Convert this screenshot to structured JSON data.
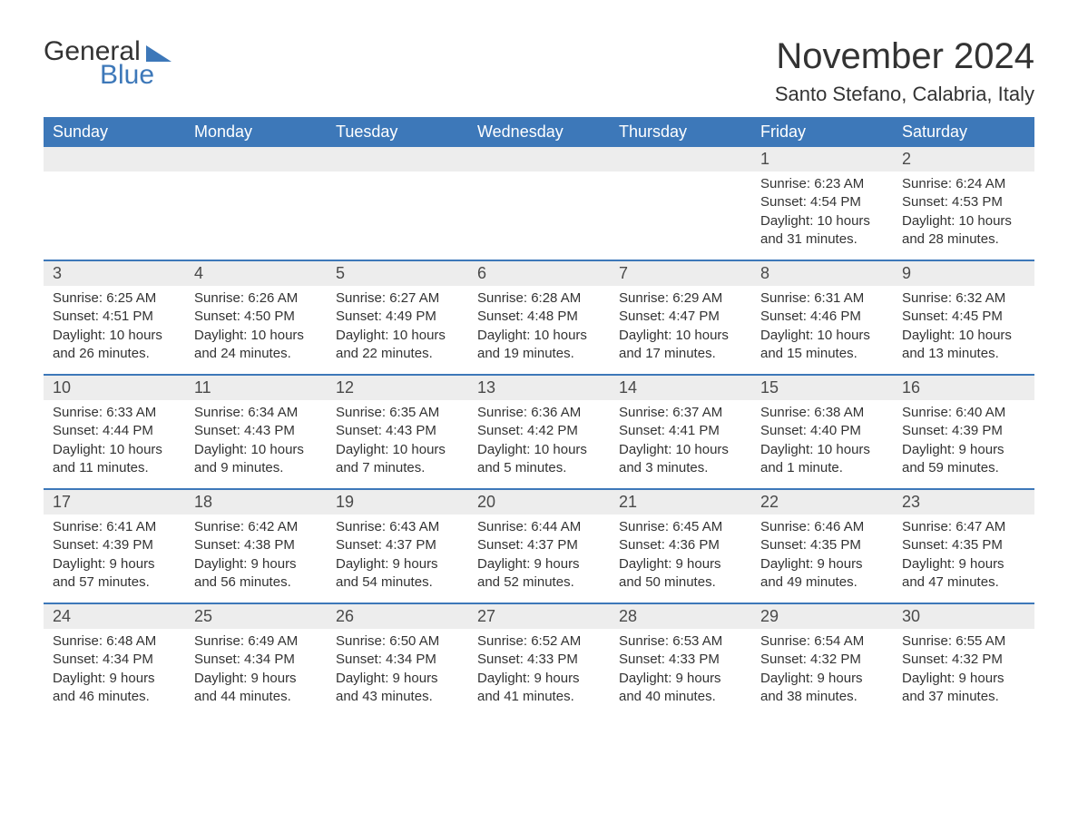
{
  "logo": {
    "word1": "General",
    "word2": "Blue"
  },
  "title": "November 2024",
  "location": "Santo Stefano, Calabria, Italy",
  "colors": {
    "brand": "#3d78b9",
    "header_bg": "#3d78b9",
    "header_text": "#ffffff",
    "daynum_bg": "#ededed",
    "text": "#333333",
    "background": "#ffffff"
  },
  "weekdays": [
    "Sunday",
    "Monday",
    "Tuesday",
    "Wednesday",
    "Thursday",
    "Friday",
    "Saturday"
  ],
  "weeks": [
    [
      {
        "day": "",
        "sunrise": "",
        "sunset": "",
        "daylight": ""
      },
      {
        "day": "",
        "sunrise": "",
        "sunset": "",
        "daylight": ""
      },
      {
        "day": "",
        "sunrise": "",
        "sunset": "",
        "daylight": ""
      },
      {
        "day": "",
        "sunrise": "",
        "sunset": "",
        "daylight": ""
      },
      {
        "day": "",
        "sunrise": "",
        "sunset": "",
        "daylight": ""
      },
      {
        "day": "1",
        "sunrise": "Sunrise: 6:23 AM",
        "sunset": "Sunset: 4:54 PM",
        "daylight": "Daylight: 10 hours and 31 minutes."
      },
      {
        "day": "2",
        "sunrise": "Sunrise: 6:24 AM",
        "sunset": "Sunset: 4:53 PM",
        "daylight": "Daylight: 10 hours and 28 minutes."
      }
    ],
    [
      {
        "day": "3",
        "sunrise": "Sunrise: 6:25 AM",
        "sunset": "Sunset: 4:51 PM",
        "daylight": "Daylight: 10 hours and 26 minutes."
      },
      {
        "day": "4",
        "sunrise": "Sunrise: 6:26 AM",
        "sunset": "Sunset: 4:50 PM",
        "daylight": "Daylight: 10 hours and 24 minutes."
      },
      {
        "day": "5",
        "sunrise": "Sunrise: 6:27 AM",
        "sunset": "Sunset: 4:49 PM",
        "daylight": "Daylight: 10 hours and 22 minutes."
      },
      {
        "day": "6",
        "sunrise": "Sunrise: 6:28 AM",
        "sunset": "Sunset: 4:48 PM",
        "daylight": "Daylight: 10 hours and 19 minutes."
      },
      {
        "day": "7",
        "sunrise": "Sunrise: 6:29 AM",
        "sunset": "Sunset: 4:47 PM",
        "daylight": "Daylight: 10 hours and 17 minutes."
      },
      {
        "day": "8",
        "sunrise": "Sunrise: 6:31 AM",
        "sunset": "Sunset: 4:46 PM",
        "daylight": "Daylight: 10 hours and 15 minutes."
      },
      {
        "day": "9",
        "sunrise": "Sunrise: 6:32 AM",
        "sunset": "Sunset: 4:45 PM",
        "daylight": "Daylight: 10 hours and 13 minutes."
      }
    ],
    [
      {
        "day": "10",
        "sunrise": "Sunrise: 6:33 AM",
        "sunset": "Sunset: 4:44 PM",
        "daylight": "Daylight: 10 hours and 11 minutes."
      },
      {
        "day": "11",
        "sunrise": "Sunrise: 6:34 AM",
        "sunset": "Sunset: 4:43 PM",
        "daylight": "Daylight: 10 hours and 9 minutes."
      },
      {
        "day": "12",
        "sunrise": "Sunrise: 6:35 AM",
        "sunset": "Sunset: 4:43 PM",
        "daylight": "Daylight: 10 hours and 7 minutes."
      },
      {
        "day": "13",
        "sunrise": "Sunrise: 6:36 AM",
        "sunset": "Sunset: 4:42 PM",
        "daylight": "Daylight: 10 hours and 5 minutes."
      },
      {
        "day": "14",
        "sunrise": "Sunrise: 6:37 AM",
        "sunset": "Sunset: 4:41 PM",
        "daylight": "Daylight: 10 hours and 3 minutes."
      },
      {
        "day": "15",
        "sunrise": "Sunrise: 6:38 AM",
        "sunset": "Sunset: 4:40 PM",
        "daylight": "Daylight: 10 hours and 1 minute."
      },
      {
        "day": "16",
        "sunrise": "Sunrise: 6:40 AM",
        "sunset": "Sunset: 4:39 PM",
        "daylight": "Daylight: 9 hours and 59 minutes."
      }
    ],
    [
      {
        "day": "17",
        "sunrise": "Sunrise: 6:41 AM",
        "sunset": "Sunset: 4:39 PM",
        "daylight": "Daylight: 9 hours and 57 minutes."
      },
      {
        "day": "18",
        "sunrise": "Sunrise: 6:42 AM",
        "sunset": "Sunset: 4:38 PM",
        "daylight": "Daylight: 9 hours and 56 minutes."
      },
      {
        "day": "19",
        "sunrise": "Sunrise: 6:43 AM",
        "sunset": "Sunset: 4:37 PM",
        "daylight": "Daylight: 9 hours and 54 minutes."
      },
      {
        "day": "20",
        "sunrise": "Sunrise: 6:44 AM",
        "sunset": "Sunset: 4:37 PM",
        "daylight": "Daylight: 9 hours and 52 minutes."
      },
      {
        "day": "21",
        "sunrise": "Sunrise: 6:45 AM",
        "sunset": "Sunset: 4:36 PM",
        "daylight": "Daylight: 9 hours and 50 minutes."
      },
      {
        "day": "22",
        "sunrise": "Sunrise: 6:46 AM",
        "sunset": "Sunset: 4:35 PM",
        "daylight": "Daylight: 9 hours and 49 minutes."
      },
      {
        "day": "23",
        "sunrise": "Sunrise: 6:47 AM",
        "sunset": "Sunset: 4:35 PM",
        "daylight": "Daylight: 9 hours and 47 minutes."
      }
    ],
    [
      {
        "day": "24",
        "sunrise": "Sunrise: 6:48 AM",
        "sunset": "Sunset: 4:34 PM",
        "daylight": "Daylight: 9 hours and 46 minutes."
      },
      {
        "day": "25",
        "sunrise": "Sunrise: 6:49 AM",
        "sunset": "Sunset: 4:34 PM",
        "daylight": "Daylight: 9 hours and 44 minutes."
      },
      {
        "day": "26",
        "sunrise": "Sunrise: 6:50 AM",
        "sunset": "Sunset: 4:34 PM",
        "daylight": "Daylight: 9 hours and 43 minutes."
      },
      {
        "day": "27",
        "sunrise": "Sunrise: 6:52 AM",
        "sunset": "Sunset: 4:33 PM",
        "daylight": "Daylight: 9 hours and 41 minutes."
      },
      {
        "day": "28",
        "sunrise": "Sunrise: 6:53 AM",
        "sunset": "Sunset: 4:33 PM",
        "daylight": "Daylight: 9 hours and 40 minutes."
      },
      {
        "day": "29",
        "sunrise": "Sunrise: 6:54 AM",
        "sunset": "Sunset: 4:32 PM",
        "daylight": "Daylight: 9 hours and 38 minutes."
      },
      {
        "day": "30",
        "sunrise": "Sunrise: 6:55 AM",
        "sunset": "Sunset: 4:32 PM",
        "daylight": "Daylight: 9 hours and 37 minutes."
      }
    ]
  ]
}
